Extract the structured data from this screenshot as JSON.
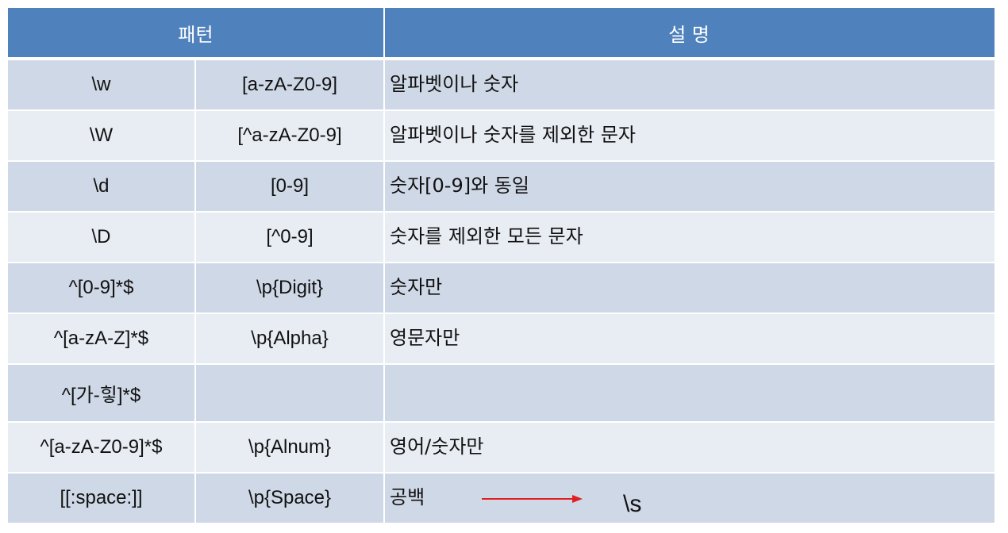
{
  "header": {
    "pattern": "패턴",
    "description": "설 명"
  },
  "rows": [
    {
      "pattern": "\\w",
      "alt": "[a-zA-Z0-9]",
      "desc": "알파벳이나 숫자"
    },
    {
      "pattern": "\\W",
      "alt": "[^a-zA-Z0-9]",
      "desc": "알파벳이나 숫자를 제외한 문자"
    },
    {
      "pattern": "\\d",
      "alt": "[0-9]",
      "desc": "숫자[0-9]와 동일"
    },
    {
      "pattern": "\\D",
      "alt": "[^0-9]",
      "desc": "숫자를 제외한 모든 문자"
    },
    {
      "pattern": "^[0-9]*$",
      "alt": "\\p{Digit}",
      "desc": "숫자만"
    },
    {
      "pattern": "^[a-zA-Z]*$",
      "alt": "\\p{Alpha}",
      "desc": "영문자만"
    },
    {
      "pattern": "^[가-힣]*$",
      "alt": "",
      "desc": ""
    },
    {
      "pattern": "^[a-zA-Z0-9]*$",
      "alt": "\\p{Alnum}",
      "desc": "영어/숫자만"
    },
    {
      "pattern": "[[:space:]]",
      "alt": "\\p{Space}",
      "desc": "공백",
      "annotation": "\\s"
    }
  ],
  "colors": {
    "header_bg": "#4f81bd",
    "row_dark": "#cfd8e6",
    "row_light": "#e8ecf3",
    "arrow": "#e02020"
  }
}
